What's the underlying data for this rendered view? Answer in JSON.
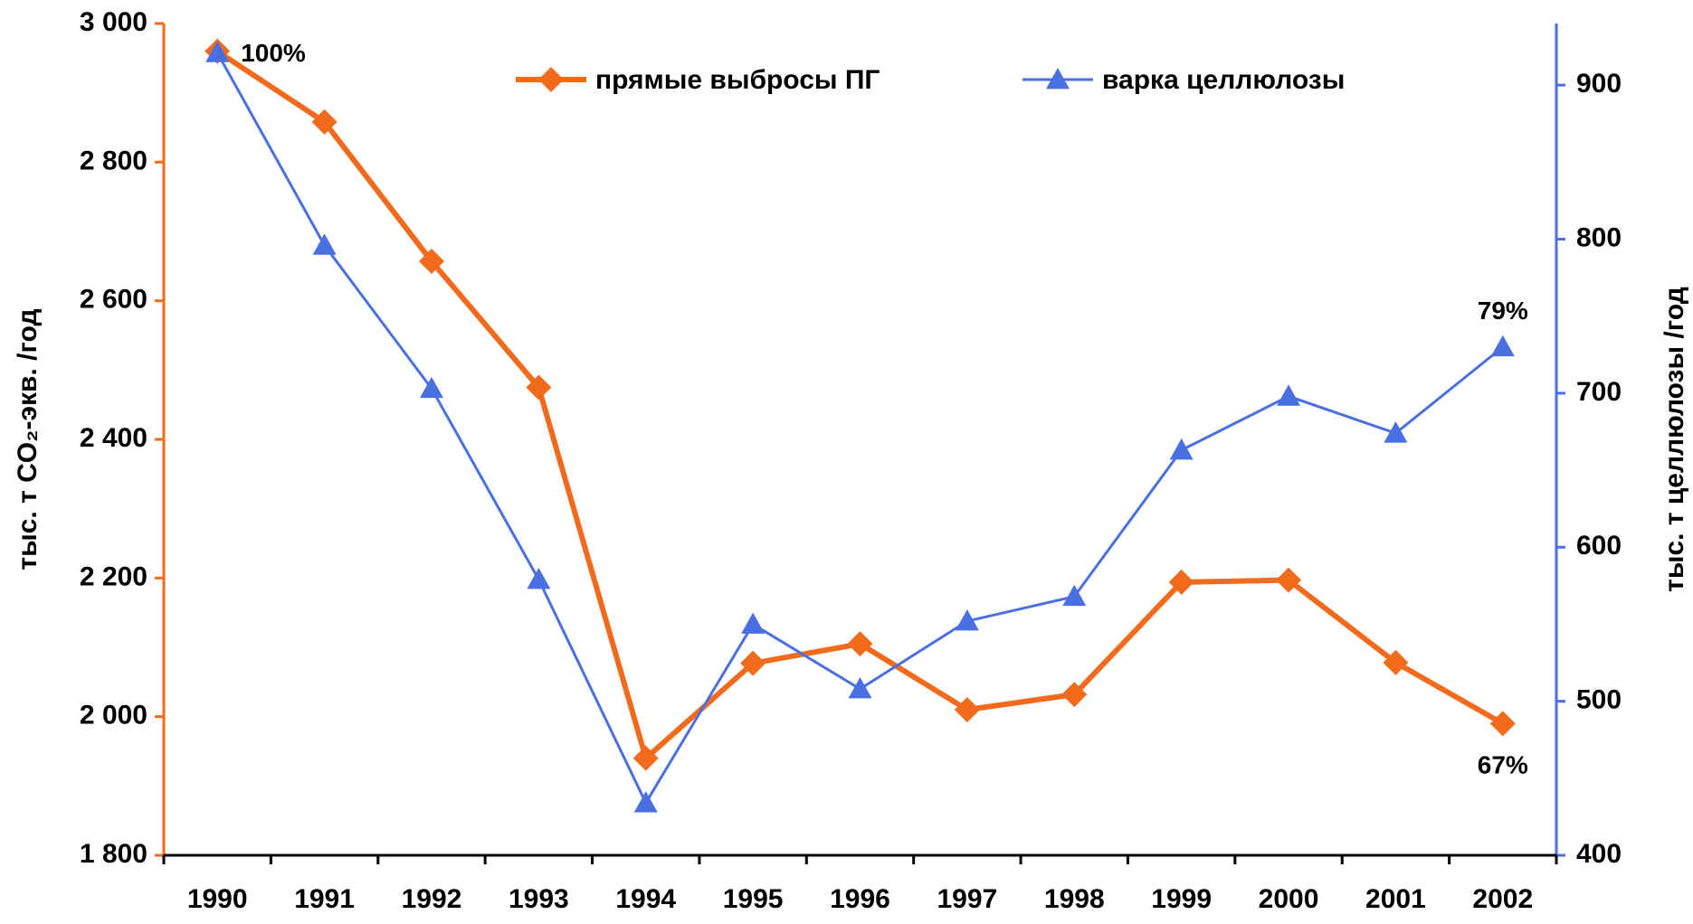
{
  "chart_data": {
    "type": "line",
    "categories": [
      "1990",
      "1991",
      "1992",
      "1993",
      "1994",
      "1995",
      "1996",
      "1997",
      "1998",
      "1999",
      "2000",
      "2001",
      "2002"
    ],
    "series": [
      {
        "name": "прямые выбросы ПГ",
        "color": "#f26a1b",
        "marker": "diamond",
        "values": [
          2960,
          2858,
          2657,
          2475,
          1940,
          2077,
          2105,
          2010,
          2032,
          2194,
          2197,
          2078,
          1990
        ]
      },
      {
        "name": "варка целлюлозы",
        "color": "#4a6fe3",
        "marker": "triangle",
        "axis": "y2",
        "values": [
          921,
          796,
          703,
          579,
          434,
          550,
          508,
          552,
          568,
          663,
          698,
          674,
          730
        ]
      }
    ],
    "ylabel": "тыс. т CO₂-экв. /год",
    "y2label": "тыс. т целлюлозы /год",
    "ylim": [
      1800,
      3000
    ],
    "yticks": [
      {
        "value": 1800,
        "label": "1 800"
      },
      {
        "value": 2000,
        "label": "2 000"
      },
      {
        "value": 2200,
        "label": "2 200"
      },
      {
        "value": 2400,
        "label": "2 400"
      },
      {
        "value": 2600,
        "label": "2 600"
      },
      {
        "value": 2800,
        "label": "2 800"
      },
      {
        "value": 3000,
        "label": "3 000"
      }
    ],
    "y2lim": [
      400,
      940
    ],
    "y2ticks": [
      400,
      500,
      600,
      700,
      800,
      900
    ],
    "annotations": [
      "100%",
      "79%",
      "67%"
    ],
    "legend": "top",
    "grid": false
  }
}
